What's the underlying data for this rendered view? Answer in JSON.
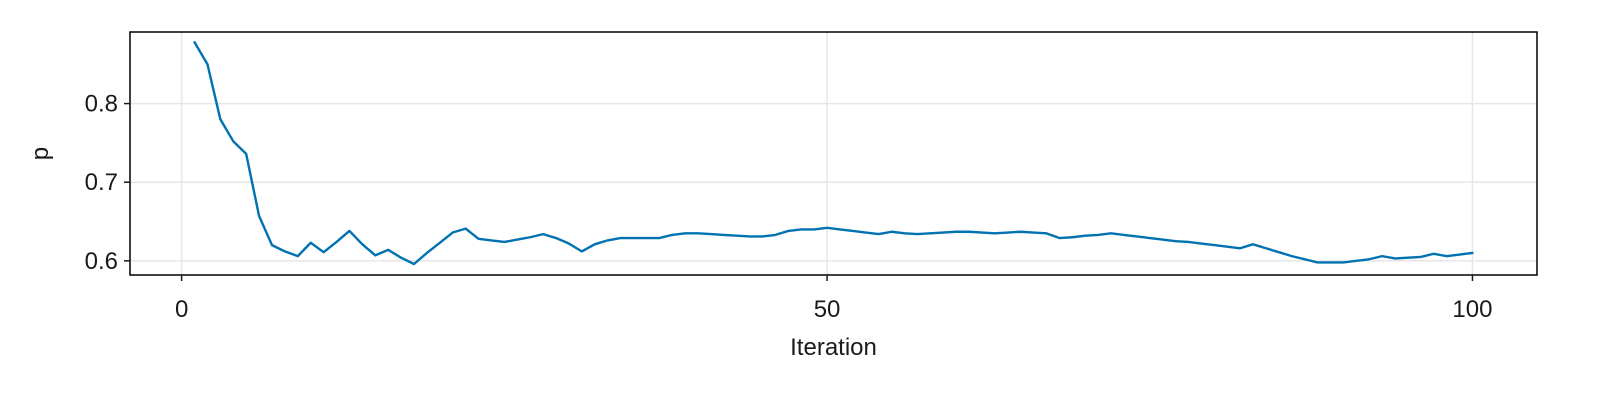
{
  "chart_data": {
    "type": "line",
    "title": "",
    "xlabel": "Iteration",
    "ylabel": "p",
    "xlim": [
      -4,
      105
    ],
    "ylim": [
      0.582,
      0.891
    ],
    "x_ticks": [
      0,
      50,
      100
    ],
    "y_ticks": [
      0.6,
      0.7,
      0.8
    ],
    "grid": true,
    "legend": "none",
    "series": [
      {
        "color": "#0072b2",
        "x": [
          1,
          2,
          3,
          4,
          5,
          6,
          7,
          8,
          9,
          10,
          11,
          12,
          13,
          14,
          15,
          16,
          17,
          18,
          19,
          20,
          21,
          22,
          23,
          24,
          25,
          26,
          27,
          28,
          29,
          30,
          31,
          32,
          33,
          34,
          35,
          36,
          37,
          38,
          39,
          40,
          41,
          42,
          43,
          44,
          45,
          46,
          47,
          48,
          49,
          50,
          51,
          52,
          53,
          54,
          55,
          56,
          57,
          58,
          59,
          60,
          61,
          62,
          63,
          64,
          65,
          66,
          67,
          68,
          69,
          70,
          71,
          72,
          73,
          74,
          75,
          76,
          77,
          78,
          79,
          80,
          81,
          82,
          83,
          84,
          85,
          86,
          87,
          88,
          89,
          90,
          91,
          92,
          93,
          94,
          95,
          96,
          97,
          98,
          99,
          100
        ],
        "y": [
          0.878,
          0.85,
          0.78,
          0.752,
          0.736,
          0.657,
          0.62,
          0.612,
          0.606,
          0.623,
          0.611,
          0.624,
          0.638,
          0.621,
          0.607,
          0.614,
          0.604,
          0.596,
          0.61,
          0.623,
          0.636,
          0.641,
          0.628,
          0.626,
          0.624,
          0.627,
          0.63,
          0.634,
          0.629,
          0.622,
          0.612,
          0.621,
          0.626,
          0.629,
          0.629,
          0.629,
          0.629,
          0.633,
          0.635,
          0.635,
          0.634,
          0.633,
          0.632,
          0.631,
          0.631,
          0.633,
          0.638,
          0.64,
          0.64,
          0.642,
          0.64,
          0.638,
          0.636,
          0.634,
          0.637,
          0.635,
          0.634,
          0.635,
          0.636,
          0.637,
          0.637,
          0.636,
          0.635,
          0.636,
          0.637,
          0.636,
          0.635,
          0.629,
          0.63,
          0.632,
          0.633,
          0.635,
          0.633,
          0.631,
          0.629,
          0.627,
          0.625,
          0.624,
          0.622,
          0.62,
          0.618,
          0.616,
          0.621,
          0.616,
          0.611,
          0.606,
          0.602,
          0.598,
          0.598,
          0.598,
          0.6,
          0.602,
          0.606,
          0.603,
          0.604,
          0.605,
          0.609,
          0.606,
          0.608,
          0.61
        ]
      }
    ]
  }
}
